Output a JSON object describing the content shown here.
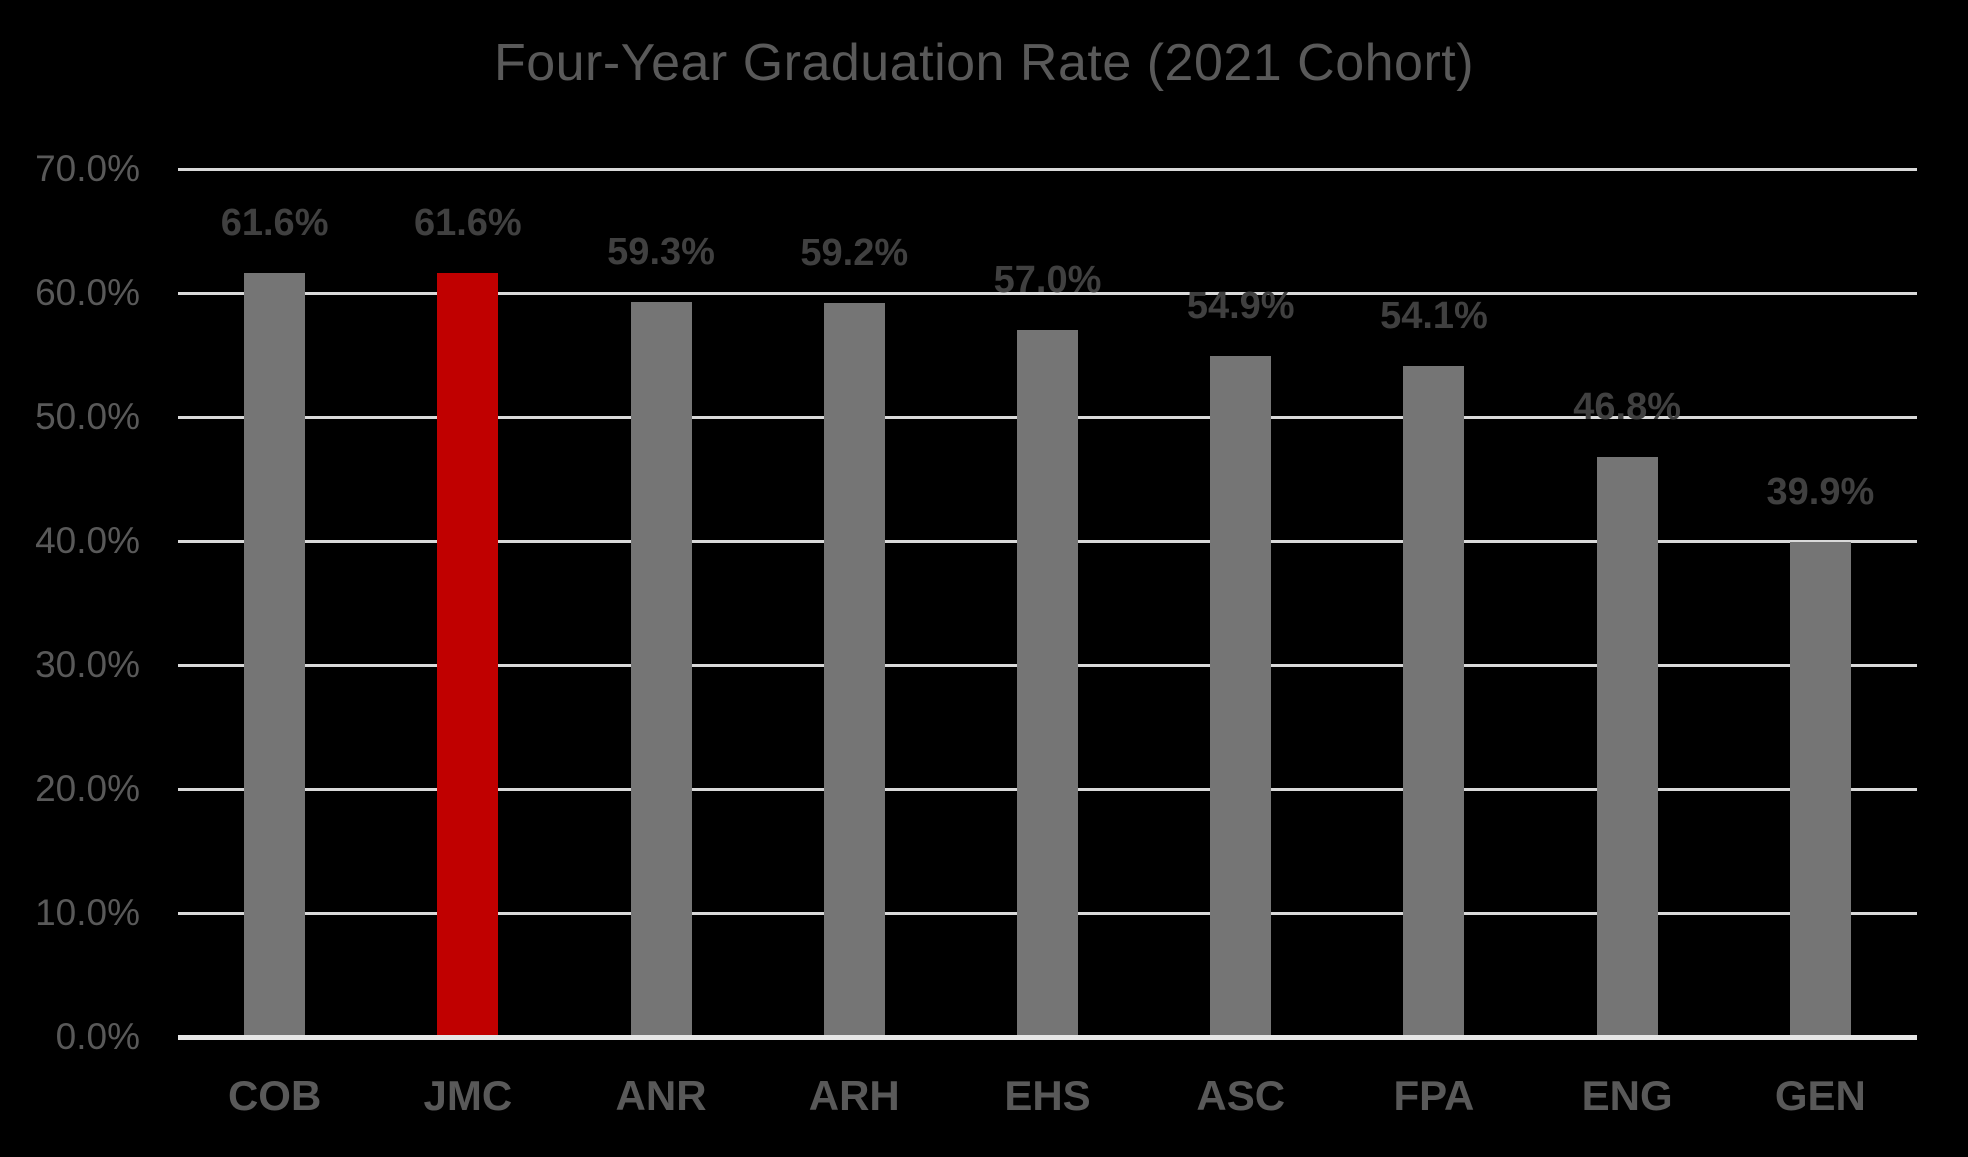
{
  "chart_data": {
    "type": "bar",
    "title": "Four-Year Graduation Rate (2021 Cohort)",
    "categories": [
      "COB",
      "JMC",
      "ANR",
      "ARH",
      "EHS",
      "ASC",
      "FPA",
      "ENG",
      "GEN"
    ],
    "values": [
      61.6,
      61.6,
      59.3,
      59.2,
      57.0,
      54.9,
      54.1,
      46.8,
      39.9
    ],
    "data_labels": [
      "61.6%",
      "61.6%",
      "59.3%",
      "59.2%",
      "57.0%",
      "54.9%",
      "54.1%",
      "46.8%",
      "39.9%"
    ],
    "highlight_index": 1,
    "xlabel": "",
    "ylabel": "",
    "ylim": [
      0,
      70
    ],
    "ytick_step": 10,
    "ytick_labels": [
      "0.0%",
      "10.0%",
      "20.0%",
      "30.0%",
      "40.0%",
      "50.0%",
      "60.0%",
      "70.0%"
    ],
    "grid": true,
    "legend_position": "none",
    "colors": {
      "background": "#000000",
      "bar": "#757575",
      "highlight_bar": "#C00000",
      "gridline": "#D9D9D9",
      "axis_line": "#E6E6E6",
      "title_text": "#595959",
      "tick_text": "#595959",
      "category_text": "#595959",
      "data_label_text": "#404040"
    }
  }
}
